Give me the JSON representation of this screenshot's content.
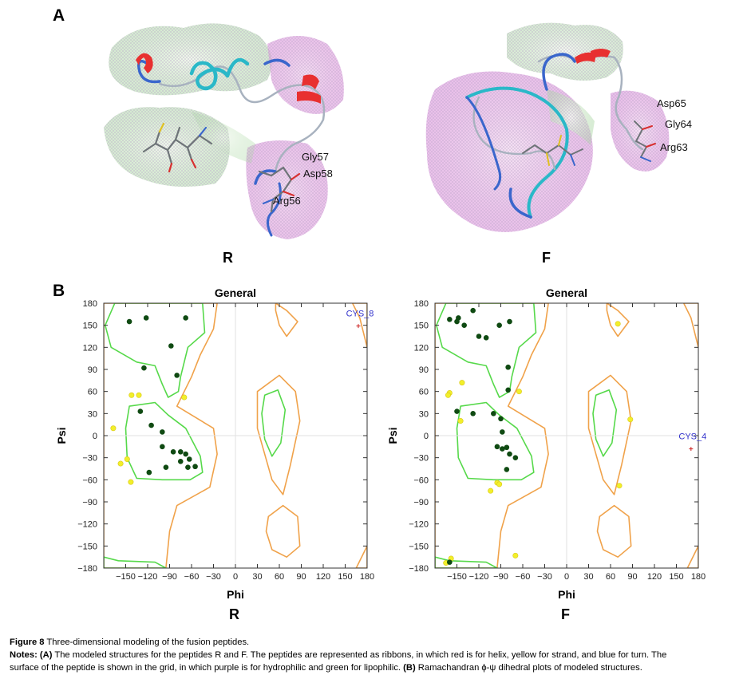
{
  "panel_a": {
    "letter": "A",
    "left_label": "R",
    "right_label": "F",
    "left_residues": [
      "Gly57",
      "Asp58",
      "Arg56"
    ],
    "right_residues": [
      "Asp65",
      "Gly64",
      "Arg63"
    ],
    "colors": {
      "helix": "#e83030",
      "turn": "#3a66cc",
      "coil": "#2ab8c8",
      "hydrophilic": "#d78ad8",
      "lipophilic": "#9ed49a"
    }
  },
  "panel_b": {
    "letter": "B",
    "left_label": "R",
    "right_label": "F"
  },
  "chart_data": [
    {
      "type": "scatter",
      "title": "General",
      "xlabel": "Phi",
      "ylabel": "Psi",
      "xlim": [
        -180,
        180
      ],
      "ylim": [
        -180,
        180
      ],
      "xticks": [
        -150,
        -120,
        -90,
        -60,
        -30,
        0,
        30,
        60,
        90,
        120,
        150,
        180
      ],
      "yticks": [
        180,
        150,
        120,
        90,
        60,
        30,
        0,
        -30,
        -60,
        -90,
        -120,
        -150,
        -180
      ],
      "favored_points": [
        [
          -145,
          155
        ],
        [
          -122,
          160
        ],
        [
          -68,
          160
        ],
        [
          -88,
          122
        ],
        [
          -125,
          92
        ],
        [
          -80,
          82
        ],
        [
          -130,
          33
        ],
        [
          -115,
          14
        ],
        [
          -100,
          5
        ],
        [
          -100,
          -15
        ],
        [
          -85,
          -22
        ],
        [
          -75,
          -22
        ],
        [
          -68,
          -25
        ],
        [
          -75,
          -35
        ],
        [
          -63,
          -32
        ],
        [
          -55,
          -42
        ],
        [
          -65,
          -43
        ],
        [
          -95,
          -43
        ],
        [
          -118,
          -50
        ]
      ],
      "allowed_points": [
        [
          -142,
          55
        ],
        [
          -132,
          55
        ],
        [
          -70,
          52
        ],
        [
          -167,
          10
        ],
        [
          -157,
          -38
        ],
        [
          -148,
          -32
        ],
        [
          -143,
          -63
        ]
      ],
      "outliers": [
        {
          "label": "CYS_8",
          "phi": 168,
          "psi": 149
        }
      ]
    },
    {
      "type": "scatter",
      "title": "General",
      "xlabel": "Phi",
      "ylabel": "Psi",
      "xlim": [
        -180,
        180
      ],
      "ylim": [
        -180,
        180
      ],
      "xticks": [
        -150,
        -120,
        -90,
        -60,
        -30,
        0,
        30,
        60,
        90,
        120,
        150,
        180
      ],
      "yticks": [
        180,
        150,
        120,
        90,
        60,
        30,
        0,
        -30,
        -60,
        -90,
        -120,
        -150,
        -180
      ],
      "favored_points": [
        [
          -160,
          158
        ],
        [
          -150,
          155
        ],
        [
          -148,
          160
        ],
        [
          -140,
          150
        ],
        [
          -128,
          170
        ],
        [
          -120,
          135
        ],
        [
          -110,
          133
        ],
        [
          -92,
          150
        ],
        [
          -78,
          155
        ],
        [
          -80,
          93
        ],
        [
          -80,
          62
        ],
        [
          -150,
          33
        ],
        [
          -128,
          30
        ],
        [
          -100,
          30
        ],
        [
          -90,
          23
        ],
        [
          -88,
          5
        ],
        [
          -95,
          -15
        ],
        [
          -88,
          -18
        ],
        [
          -82,
          -16
        ],
        [
          -78,
          -25
        ],
        [
          -70,
          -30
        ],
        [
          -82,
          -46
        ],
        [
          -160,
          -172
        ]
      ],
      "allowed_points": [
        [
          -143,
          72
        ],
        [
          -160,
          58
        ],
        [
          -162,
          55
        ],
        [
          -145,
          20
        ],
        [
          -95,
          -64
        ],
        [
          -92,
          -66
        ],
        [
          -104,
          -75
        ],
        [
          -65,
          60
        ],
        [
          -70,
          -163
        ],
        [
          -158,
          -167
        ],
        [
          -165,
          -173
        ],
        [
          70,
          152
        ],
        [
          87,
          22
        ],
        [
          72,
          -68
        ]
      ],
      "outliers": [
        {
          "label": "CYS_4",
          "phi": 170,
          "psi": -18
        }
      ]
    }
  ],
  "caption": {
    "figure_label": "Figure 8",
    "figure_title": "Three-dimensional modeling of the fusion peptides.",
    "notes_label": "Notes:",
    "notes_a_letter": "(A)",
    "notes_a_text": "The modeled structures for the peptides R and F. The peptides are represented as ribbons, in which red is for helix, yellow for strand, and blue for turn. The",
    "notes_line2_part1": "surface of the peptide is shown in the grid, in which purple is for hydrophilic and green for lipophilic.",
    "notes_b_letter": "(B)",
    "notes_b_text": "Ramachandran ϕ-ψ dihedral plots of modeled structures."
  }
}
